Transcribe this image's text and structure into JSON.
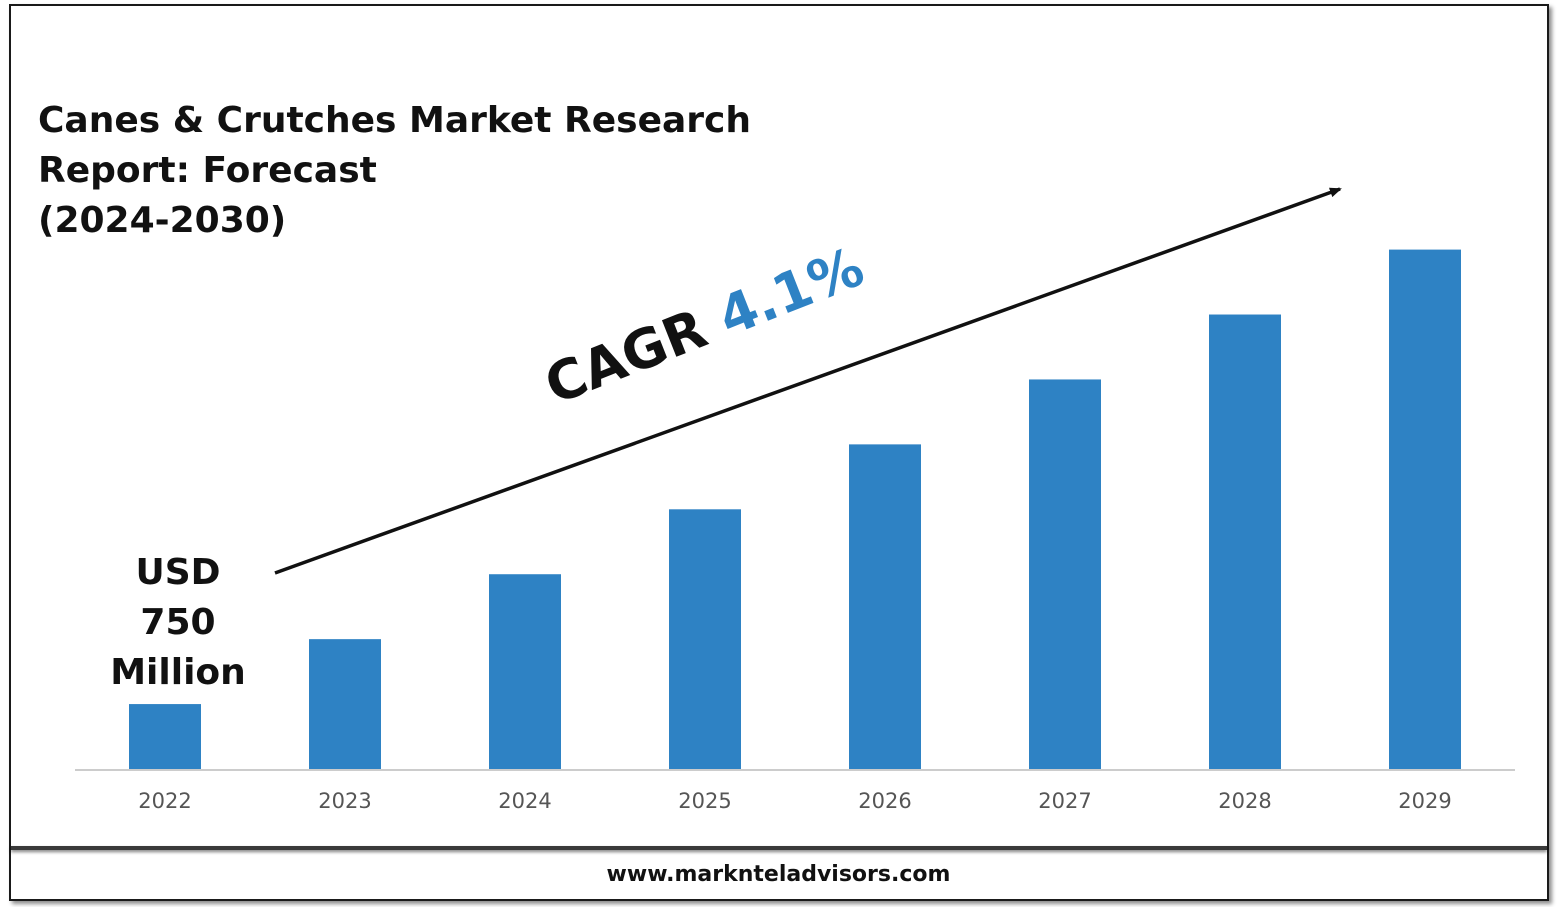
{
  "title_lines": [
    "Canes & Crutches Market Research",
    "Report: Forecast",
    "(2024-2030)"
  ],
  "start_value_label": [
    "USD",
    "750",
    "Million"
  ],
  "cagr": {
    "prefix": "CAGR",
    "value": "4.1%"
  },
  "website": "www.marknteladvisors.com",
  "colors": {
    "bar": "#2e82c4",
    "cagr_value": "#2e82c4",
    "text": "#111111",
    "axis_line": "#cccccc",
    "tick_label": "#555555"
  },
  "chart_data": {
    "type": "bar",
    "categories": [
      "2022",
      "2023",
      "2024",
      "2025",
      "2026",
      "2027",
      "2028",
      "2029"
    ],
    "values": [
      750,
      1500,
      2250,
      3000,
      3750,
      4500,
      5250,
      6000
    ],
    "ylim": [
      0,
      6700
    ],
    "grid": false,
    "legend": "none",
    "annotations": [
      "USD 750 Million",
      "CAGR 4.1%"
    ]
  }
}
